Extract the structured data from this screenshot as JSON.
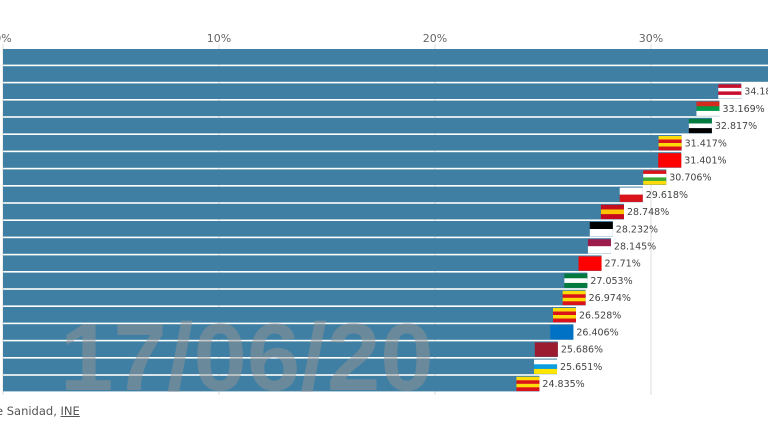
{
  "chart_data": {
    "type": "bar",
    "orientation": "horizontal",
    "x_ticks": [
      "0%",
      "10%",
      "20%",
      "30%"
    ],
    "xlim": [
      0,
      35.4
    ],
    "grid": true,
    "date_label": "17/06/20",
    "bar_color": "#3f7fa3",
    "bars": [
      {
        "value": null,
        "label": "",
        "flag": []
      },
      {
        "value": null,
        "label": "",
        "flag": []
      },
      {
        "value": 34.18,
        "label": "34.18",
        "flag": [
          "#c8102e",
          "#ffffff",
          "#c8102e",
          "#ffffff"
        ]
      },
      {
        "value": 33.169,
        "label": "33.169%",
        "flag": [
          "#d52b1e",
          "#009b48",
          "#ffffff"
        ]
      },
      {
        "value": 32.817,
        "label": "32.817%",
        "flag": [
          "#007a3d",
          "#ffffff",
          "#000000"
        ]
      },
      {
        "value": 31.417,
        "label": "31.417%",
        "flag": [
          "#fcdd09",
          "#da121a",
          "#fcdd09",
          "#da121a"
        ]
      },
      {
        "value": 31.401,
        "label": "31.401%",
        "flag": [
          "#ff0000",
          "#ff0000"
        ]
      },
      {
        "value": 30.706,
        "label": "30.706%",
        "flag": [
          "#da121a",
          "#ffffff",
          "#3aa935",
          "#fcdd09"
        ]
      },
      {
        "value": 29.618,
        "label": "29.618%",
        "flag": [
          "#ffffff",
          "#da121a"
        ]
      },
      {
        "value": 28.748,
        "label": "28.748%",
        "flag": [
          "#c60b1e",
          "#ffc400",
          "#c60b1e"
        ]
      },
      {
        "value": 28.232,
        "label": "28.232%",
        "flag": [
          "#000000",
          "#ffffff"
        ]
      },
      {
        "value": 28.145,
        "label": "28.145%",
        "flag": [
          "#9c1b4a",
          "#ffffff"
        ]
      },
      {
        "value": 27.71,
        "label": "27.71%",
        "flag": [
          "#ff0000",
          "#ff0000"
        ]
      },
      {
        "value": 27.053,
        "label": "27.053%",
        "flag": [
          "#007a3d",
          "#ffffff",
          "#007a3d"
        ]
      },
      {
        "value": 26.974,
        "label": "26.974%",
        "flag": [
          "#fcdd09",
          "#da121a",
          "#fcdd09",
          "#da121a"
        ]
      },
      {
        "value": 26.528,
        "label": "26.528%",
        "flag": [
          "#fcdd09",
          "#da121a",
          "#fcdd09",
          "#da121a"
        ]
      },
      {
        "value": 26.406,
        "label": "26.406%",
        "flag": [
          "#0072c6",
          "#0072c6"
        ]
      },
      {
        "value": 25.686,
        "label": "25.686%",
        "flag": [
          "#9b1b30",
          "#9b1b30"
        ]
      },
      {
        "value": 25.651,
        "label": "25.651%",
        "flag": [
          "#ffffff",
          "#0a9ee0",
          "#ffe600"
        ]
      },
      {
        "value": 24.835,
        "label": "24.835%",
        "flag": [
          "#fcdd09",
          "#da121a",
          "#fcdd09",
          "#da121a"
        ]
      }
    ]
  },
  "source": {
    "prefix": "e Sanidad, ",
    "link": "INE"
  }
}
